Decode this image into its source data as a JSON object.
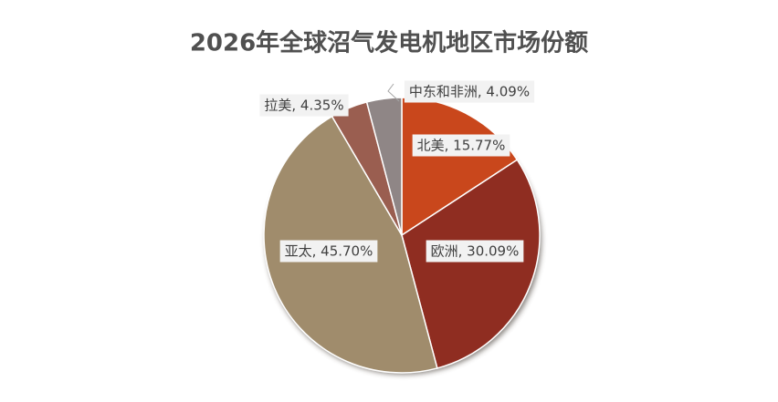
{
  "chart_data": {
    "type": "pie",
    "title": "2026年全球沼气发电机地区市场份额",
    "values": [
      15.77,
      30.09,
      45.7,
      4.35,
      4.09
    ],
    "value_labels": [
      "北美, 15.77%",
      "欧洲, 30.09%",
      "亚太, 45.70%",
      "拉美, 4.35%",
      "中东和非洲, 4.09%"
    ],
    "colors": [
      "#c9471c",
      "#8f2d21",
      "#a08c6c",
      "#9a5e50",
      "#8f8686"
    ]
  }
}
